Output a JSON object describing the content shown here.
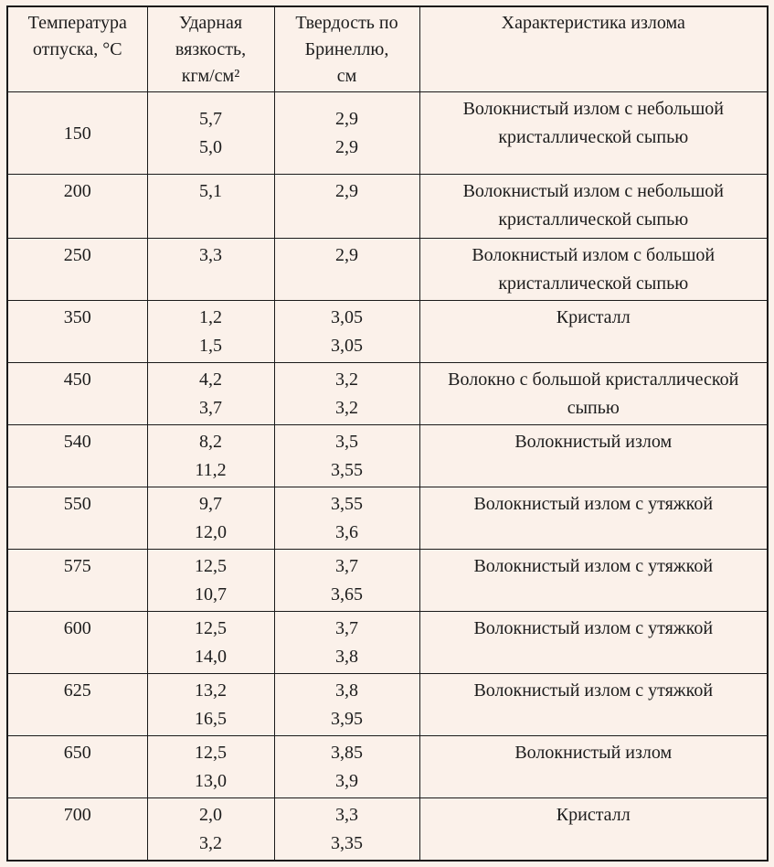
{
  "colors": {
    "background": "#fbf1ea",
    "border": "#1a1a1a",
    "text": "#1c1c1c"
  },
  "table": {
    "headers": [
      {
        "label": "Температура отпуска, °С",
        "lines": [
          "Температура",
          "отпуска, °С"
        ]
      },
      {
        "label": "Ударная вязкость, кгм/см²",
        "lines": [
          "Ударная",
          "вязкость,",
          "кгм/см²"
        ]
      },
      {
        "label": "Твердость по Бринеллю, см",
        "lines": [
          "Твердость по",
          "Бринеллю,",
          "см"
        ]
      },
      {
        "label": "Характеристика излома",
        "lines": [
          "Характеристика излома"
        ]
      }
    ],
    "rows": [
      {
        "temp": "150",
        "toughness": [
          "5,7",
          "5,0"
        ],
        "hardness": [
          "2,9",
          "2,9"
        ],
        "fracture": "Волокнистый излом с небольшой кристаллической сыпью"
      },
      {
        "temp": "200",
        "toughness": [
          "5,1"
        ],
        "hardness": [
          "2,9"
        ],
        "fracture": "Волокнистый излом с небольшой кристаллической сыпью"
      },
      {
        "temp": "250",
        "toughness": [
          "3,3"
        ],
        "hardness": [
          "2,9"
        ],
        "fracture": "Волокнистый излом с большой кристаллической сыпью"
      },
      {
        "temp": "350",
        "toughness": [
          "1,2",
          "1,5"
        ],
        "hardness": [
          "3,05",
          "3,05"
        ],
        "fracture": "Кристалл"
      },
      {
        "temp": "450",
        "toughness": [
          "4,2",
          "3,7"
        ],
        "hardness": [
          "3,2",
          "3,2"
        ],
        "fracture": "Волокно с большой кристаллической сыпью"
      },
      {
        "temp": "540",
        "toughness": [
          "8,2",
          "11,2"
        ],
        "hardness": [
          "3,5",
          "3,55"
        ],
        "fracture": "Волокнистый излом"
      },
      {
        "temp": "550",
        "toughness": [
          "9,7",
          "12,0"
        ],
        "hardness": [
          "3,55",
          "3,6"
        ],
        "fracture": "Волокнистый излом с утяжкой"
      },
      {
        "temp": "575",
        "toughness": [
          "12,5",
          "10,7"
        ],
        "hardness": [
          "3,7",
          "3,65"
        ],
        "fracture": "Волокнистый излом с утяжкой"
      },
      {
        "temp": "600",
        "toughness": [
          "12,5",
          "14,0"
        ],
        "hardness": [
          "3,7",
          "3,8"
        ],
        "fracture": "Волокнистый излом с утяжкой"
      },
      {
        "temp": "625",
        "toughness": [
          "13,2",
          "16,5"
        ],
        "hardness": [
          "3,8",
          "3,95"
        ],
        "fracture": "Волокнистый излом  с утяжкой"
      },
      {
        "temp": "650",
        "toughness": [
          "12,5",
          "13,0"
        ],
        "hardness": [
          "3,85",
          "3,9"
        ],
        "fracture": "Волокнистый излом"
      },
      {
        "temp": "700",
        "toughness": [
          "2,0",
          "3,2"
        ],
        "hardness": [
          "3,3",
          "3,35"
        ],
        "fracture": "Кристалл"
      }
    ]
  }
}
